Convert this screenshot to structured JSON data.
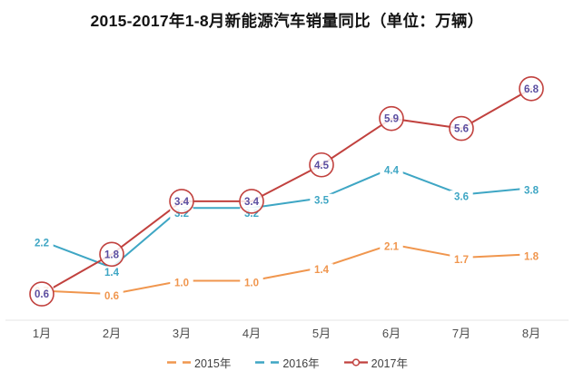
{
  "title": "2015-2017年1-8月新能源汽车销量同比（单位：万辆）",
  "chart_data": {
    "type": "line",
    "title": "2015-2017年1-8月新能源汽车销量同比（单位：万辆）",
    "unit": "万辆",
    "categories": [
      "1月",
      "2月",
      "3月",
      "4月",
      "5月",
      "6月",
      "7月",
      "8月"
    ],
    "series": [
      {
        "name": "2015年",
        "color": "#f0964e",
        "label_color": "#f0964e",
        "marker": "none",
        "legend_icon": "dashes",
        "values": [
          0.7,
          0.6,
          1.0,
          1.0,
          1.4,
          2.1,
          1.7,
          1.8
        ]
      },
      {
        "name": "2016年",
        "color": "#3ea6c4",
        "label_color": "#3ea6c4",
        "marker": "none",
        "legend_icon": "dashes",
        "values": [
          2.2,
          1.4,
          3.2,
          3.2,
          3.5,
          4.4,
          3.6,
          3.8
        ]
      },
      {
        "name": "2017年",
        "color": "#c1413e",
        "label_color": "#5b4ea1",
        "marker": "circled-label",
        "legend_icon": "line-circle",
        "values": [
          0.6,
          1.8,
          3.4,
          3.4,
          4.5,
          5.9,
          5.6,
          6.8
        ]
      }
    ],
    "value_decimals": 1,
    "ylim": [
      0,
      7.5
    ],
    "grid": false,
    "y_axis_labels": "none",
    "x_axis_line_color": "#e4e4e4",
    "x_label_color": "#4d4d4d",
    "legend_position": "bottom",
    "legend_text_color": "#404040"
  }
}
